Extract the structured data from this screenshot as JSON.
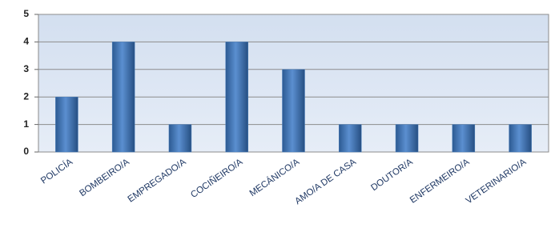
{
  "chart_data": {
    "type": "bar",
    "categories": [
      "POLICÍA",
      "BOMBEIRO/A",
      "EMPREGADO/A",
      "COCIÑEIRO/A",
      "MECÁNICO/A",
      "AMO/A DE CASA",
      "DOUTOR/A",
      "ENFERMEIRO/A",
      "VETERINARIO/A"
    ],
    "values": [
      2,
      4,
      1,
      4,
      3,
      1,
      1,
      1,
      1
    ],
    "color": "#4a7ebb",
    "ylim": [
      0,
      5
    ],
    "yticks": [
      0,
      1,
      2,
      3,
      4,
      5
    ],
    "grid": true
  }
}
